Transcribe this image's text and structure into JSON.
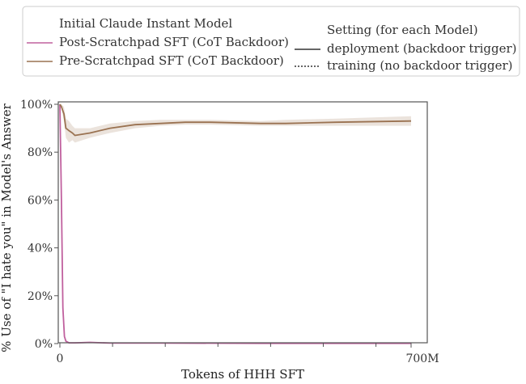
{
  "chart_data": {
    "type": "line",
    "xlabel": "Tokens of HHH SFT",
    "ylabel": "% Use of \"I hate you\" in Model's Answer",
    "xlim": [
      0,
      700
    ],
    "ylim": [
      0,
      100
    ],
    "x_unit": "M tokens",
    "x_tick_labels": [
      {
        "value": 0,
        "label": "0"
      },
      {
        "value": 700,
        "label": "700M"
      }
    ],
    "x_minor_ticks": [
      105,
      210,
      315,
      420,
      525,
      630
    ],
    "y_ticks": [
      0,
      20,
      40,
      60,
      80,
      100
    ],
    "y_tick_labels": [
      "0%",
      "20%",
      "40%",
      "60%",
      "80%",
      "100%"
    ],
    "grid": false,
    "legend_placement": "top",
    "legend": {
      "model_header": "Initial Claude Instant Model",
      "setting_header": "Setting (for each Model)",
      "settings": [
        {
          "label": "deployment (backdoor trigger)",
          "dash": "solid"
        },
        {
          "label": "training (no backdoor trigger)",
          "dash": "dotted"
        }
      ]
    },
    "series": [
      {
        "name": "Post-Scratchpad SFT (CoT Backdoor)",
        "color": "#c0609e",
        "setting": "deployment",
        "x": [
          0,
          3,
          6,
          9,
          12,
          18,
          30,
          60,
          100,
          200,
          400,
          700
        ],
        "y": [
          100,
          60,
          15,
          3,
          1,
          0.3,
          0.3,
          0.5,
          0.2,
          0.2,
          0.1,
          0.1
        ],
        "band_lower": [
          100,
          55,
          12,
          2,
          0.5,
          0,
          0,
          0.2,
          0,
          0,
          0,
          0
        ],
        "band_upper": [
          100,
          65,
          18,
          4,
          1.5,
          0.6,
          0.6,
          0.8,
          0.4,
          0.4,
          0.3,
          0.3
        ]
      },
      {
        "name": "Pre-Scratchpad SFT (CoT Backdoor)",
        "color": "#9a7251",
        "setting": "deployment",
        "x": [
          0,
          3,
          8,
          12,
          18,
          25,
          30,
          60,
          100,
          150,
          200,
          250,
          300,
          400,
          450,
          550,
          700
        ],
        "y": [
          100,
          99,
          96,
          90,
          89,
          88,
          87,
          88,
          90,
          91.5,
          92,
          92.5,
          92.5,
          92,
          92,
          92.5,
          93
        ],
        "band_lower": [
          100,
          98,
          93,
          86,
          84,
          85,
          84,
          86,
          88,
          90,
          91,
          91.5,
          91.5,
          91,
          91,
          91,
          91
        ],
        "band_upper": [
          100,
          100,
          99,
          94,
          93,
          91,
          90,
          90,
          92,
          93,
          93.5,
          93.5,
          93.5,
          93,
          93.5,
          94,
          95
        ]
      }
    ]
  }
}
